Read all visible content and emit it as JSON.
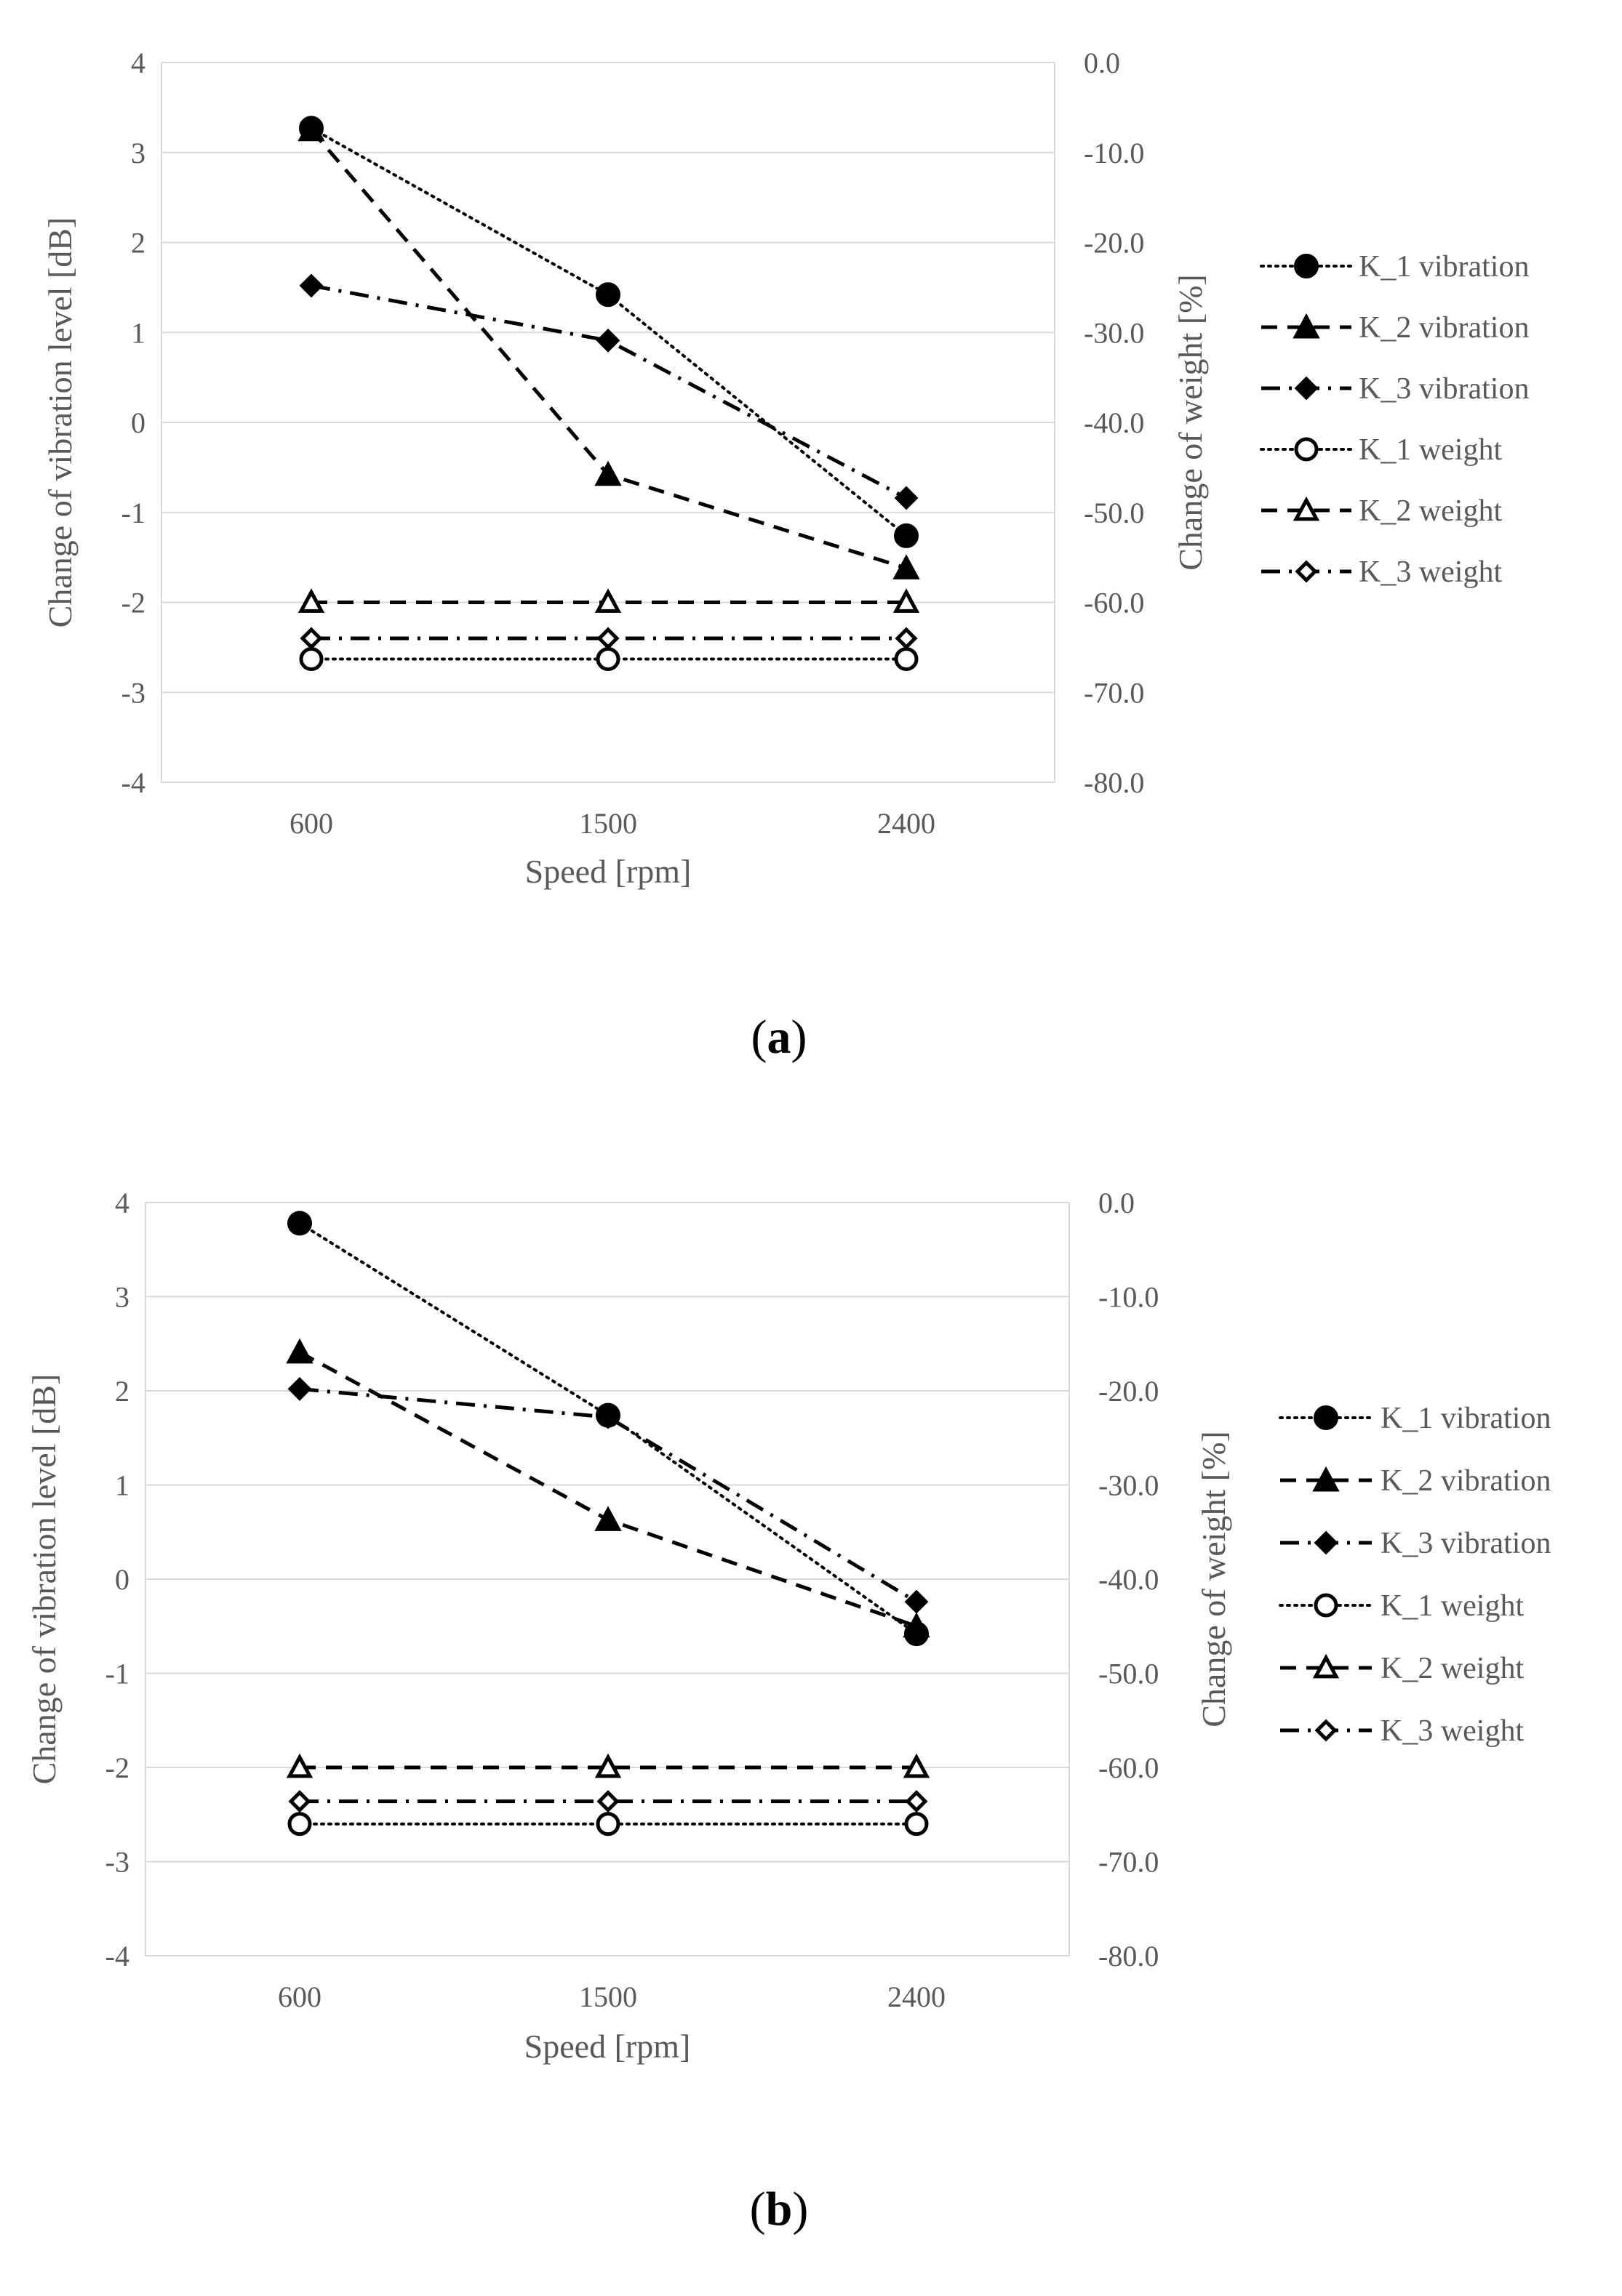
{
  "chart_data": [
    {
      "panel_label": "(a)",
      "panel_letter": "a",
      "type": "line",
      "xlabel": "Speed [rpm]",
      "ylabel": "Change of vibration level [dB]",
      "y2label": "Change of weight [%]",
      "categories": [
        "600",
        "1500",
        "2400"
      ],
      "ylim": [
        -4,
        4
      ],
      "y2lim": [
        -80.0,
        0.0
      ],
      "yticks": [
        "4",
        "3",
        "2",
        "1",
        "0",
        "-1",
        "-2",
        "-3",
        "-4"
      ],
      "y2ticks": [
        "0.0",
        "-10.0",
        "-20.0",
        "-30.0",
        "-40.0",
        "-50.0",
        "-60.0",
        "-70.0",
        "-80.0"
      ],
      "grid": true,
      "legend_position": "right",
      "series": [
        {
          "name": "K_1  vibration",
          "axis": "left",
          "values": [
            3.27,
            1.42,
            -1.26
          ],
          "dash": "dotted",
          "marker": "circle",
          "filled": true
        },
        {
          "name": "K_2  vibration",
          "axis": "left",
          "values": [
            3.25,
            -0.58,
            -1.62
          ],
          "dash": "dashed",
          "marker": "triangle",
          "filled": true
        },
        {
          "name": "K_3 vibration",
          "axis": "left",
          "values": [
            1.52,
            0.91,
            -0.84
          ],
          "dash": "dashdot",
          "marker": "diamond",
          "filled": true
        },
        {
          "name": "K_1 weight",
          "axis": "right",
          "values": [
            -66.3,
            -66.3,
            -66.3
          ],
          "dash": "dotted",
          "marker": "circle",
          "filled": false
        },
        {
          "name": "K_2 weight",
          "axis": "right",
          "values": [
            -60.0,
            -60.0,
            -60.0
          ],
          "dash": "dashed",
          "marker": "triangle",
          "filled": false
        },
        {
          "name": "K_3 weight",
          "axis": "right",
          "values": [
            -64.0,
            -64.0,
            -64.0
          ],
          "dash": "dashdot",
          "marker": "diamond",
          "filled": false
        }
      ]
    },
    {
      "panel_label": "(b)",
      "panel_letter": "b",
      "type": "line",
      "xlabel": "Speed [rpm]",
      "ylabel": "Change of vibration level [dB]",
      "y2label": "Change of weight [%]",
      "categories": [
        "600",
        "1500",
        "2400"
      ],
      "ylim": [
        -4,
        4
      ],
      "y2lim": [
        -80.0,
        0.0
      ],
      "yticks": [
        "4",
        "3",
        "2",
        "1",
        "0",
        "-1",
        "-2",
        "-3",
        "-4"
      ],
      "y2ticks": [
        "0.0",
        "-10.0",
        "-20.0",
        "-30.0",
        "-40.0",
        "-50.0",
        "-60.0",
        "-70.0",
        "-80.0"
      ],
      "grid": true,
      "legend_position": "right",
      "series": [
        {
          "name": "K_1  vibration",
          "axis": "left",
          "values": [
            3.78,
            1.74,
            -0.58
          ],
          "dash": "dotted",
          "marker": "circle",
          "filled": true
        },
        {
          "name": "K_2  vibration",
          "axis": "left",
          "values": [
            2.41,
            0.63,
            -0.5
          ],
          "dash": "dashed",
          "marker": "triangle",
          "filled": true
        },
        {
          "name": "K_3 vibration",
          "axis": "left",
          "values": [
            2.02,
            1.72,
            -0.24
          ],
          "dash": "dashdot",
          "marker": "diamond",
          "filled": true
        },
        {
          "name": "K_1 weight",
          "axis": "right",
          "values": [
            -66.0,
            -66.0,
            -66.0
          ],
          "dash": "dotted",
          "marker": "circle",
          "filled": false
        },
        {
          "name": "K_2 weight",
          "axis": "right",
          "values": [
            -60.0,
            -60.0,
            -60.0
          ],
          "dash": "dashed",
          "marker": "triangle",
          "filled": false
        },
        {
          "name": "K_3 weight",
          "axis": "right",
          "values": [
            -63.6,
            -63.6,
            -63.6
          ],
          "dash": "dashdot",
          "marker": "diamond",
          "filled": false
        }
      ]
    }
  ]
}
